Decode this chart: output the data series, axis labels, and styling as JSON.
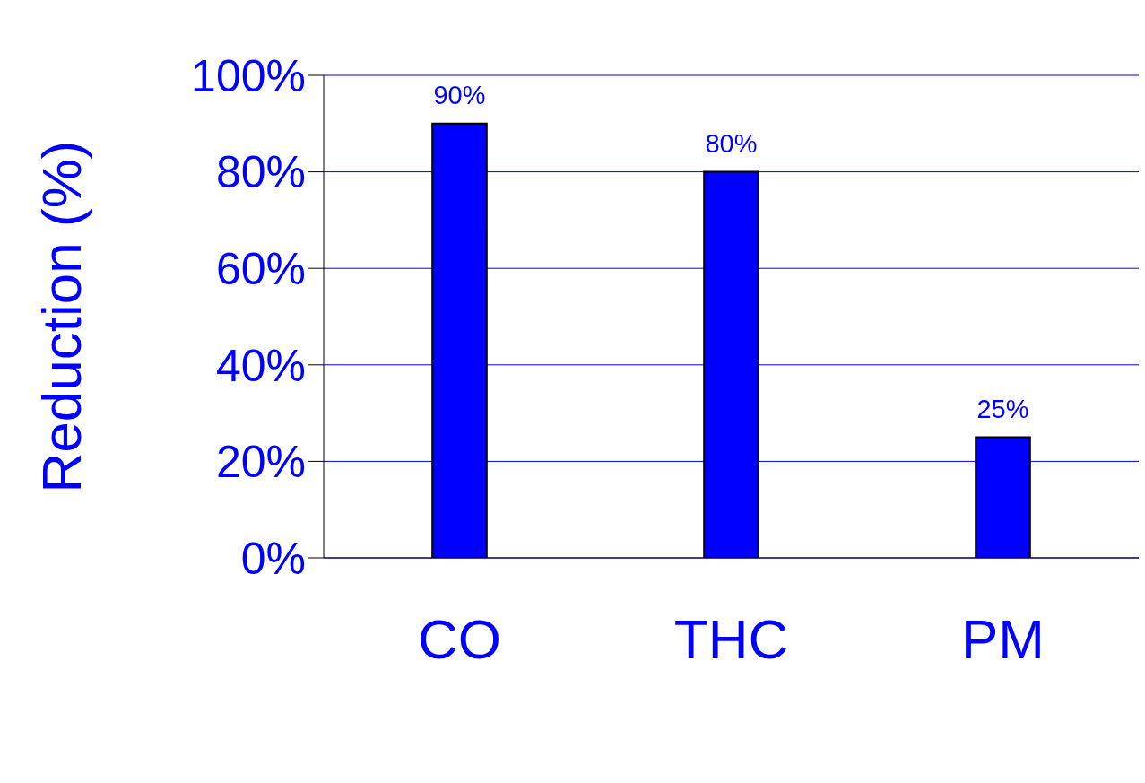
{
  "chart_data": {
    "type": "bar",
    "ylabel": "Reduction (%)",
    "categories": [
      "CO",
      "THC",
      "PM"
    ],
    "values": [
      90,
      80,
      25
    ],
    "value_labels": [
      "90%",
      "80%",
      "25%"
    ],
    "color": "#0000ff",
    "ylim": [
      0,
      100
    ],
    "yticks": [
      {
        "value": 0,
        "label": "0%"
      },
      {
        "value": 20,
        "label": "20%"
      },
      {
        "value": 40,
        "label": "40%"
      },
      {
        "value": 60,
        "label": "60%"
      },
      {
        "value": 80,
        "label": "80%"
      },
      {
        "value": 100,
        "label": "100%"
      }
    ],
    "grid": "y"
  }
}
